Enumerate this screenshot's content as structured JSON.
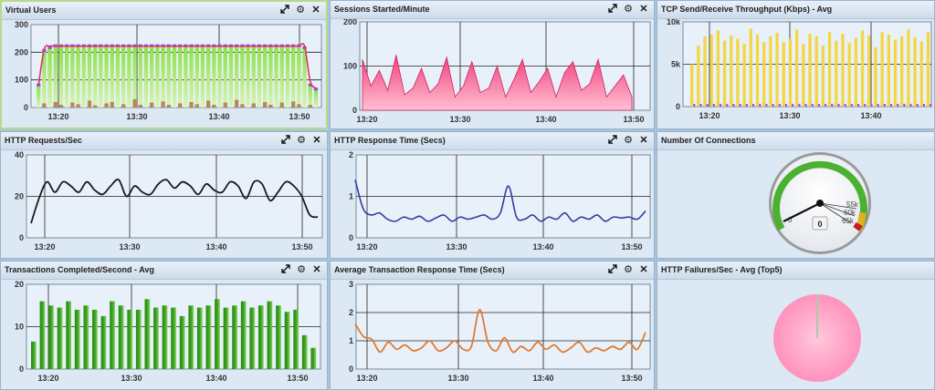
{
  "panels": {
    "virtual_users": {
      "title": "Virtual Users",
      "yticks": [
        "300",
        "200",
        "100",
        "0"
      ],
      "xticks": [
        "13:20",
        "13:30",
        "13:40",
        "13:50"
      ]
    },
    "sessions": {
      "title": "Sessions Started/Minute",
      "yticks": [
        "200",
        "100",
        "0"
      ],
      "xticks": [
        "13:20",
        "13:30",
        "13:40",
        "13:50"
      ]
    },
    "tcp": {
      "title": "TCP Send/Receive Throughput (Kbps) - Avg",
      "yticks": [
        "10k",
        "5k",
        "0"
      ],
      "xticks": [
        "13:20",
        "13:30",
        "13:40"
      ]
    },
    "http_requests": {
      "title": "HTTP Requests/Sec",
      "yticks": [
        "40",
        "20",
        "0"
      ],
      "xticks": [
        "13:20",
        "13:30",
        "13:40",
        "13:50"
      ]
    },
    "http_response": {
      "title": "HTTP Response Time (Secs)",
      "yticks": [
        "2",
        "1",
        "0"
      ],
      "xticks": [
        "13:20",
        "13:30",
        "13:40",
        "13:50"
      ]
    },
    "connections": {
      "title": "Number Of Connections",
      "gauge_labels": [
        "55k",
        "60k",
        "65k"
      ],
      "gauge_zero": "0",
      "gauge_value": "0"
    },
    "transactions": {
      "title": "Transactions Completed/Second - Avg",
      "yticks": [
        "20",
        "10",
        "0"
      ],
      "xticks": [
        "13:20",
        "13:30",
        "13:40",
        "13:50"
      ]
    },
    "avg_trans": {
      "title": "Average Transaction Response Time (Secs)",
      "yticks": [
        "3",
        "2",
        "1",
        "0"
      ],
      "xticks": [
        "13:20",
        "13:30",
        "13:40",
        "13:50"
      ]
    },
    "http_failures": {
      "title": "HTTP Failures/Sec - Avg (Top5)"
    }
  },
  "chart_data": [
    {
      "id": "virtual_users",
      "type": "bar",
      "ylim": [
        0,
        300
      ],
      "values": [
        80,
        205,
        215,
        222,
        222,
        222,
        222,
        222,
        222,
        222,
        222,
        222,
        222,
        222,
        222,
        222,
        222,
        222,
        222,
        222,
        222,
        222,
        222,
        222,
        222,
        222,
        222,
        222,
        222,
        222,
        222,
        222,
        222,
        222,
        222,
        222,
        222,
        222,
        222,
        222,
        222,
        222,
        222,
        222,
        222,
        222,
        222,
        215,
        80,
        65
      ],
      "ramp_line": [
        80,
        210,
        222,
        222,
        222,
        222,
        222,
        222,
        222,
        222,
        222,
        222,
        222,
        222,
        222,
        222,
        222,
        222,
        222,
        222,
        222,
        222,
        222,
        222,
        222,
        222,
        222,
        222,
        222,
        222,
        222,
        222,
        222,
        222,
        222,
        222,
        222,
        222,
        222,
        222,
        222,
        222,
        222,
        222,
        222,
        222,
        222,
        222,
        95,
        70
      ],
      "brown": [
        0,
        15,
        0,
        20,
        10,
        0,
        18,
        12,
        0,
        25,
        8,
        0,
        15,
        20,
        0,
        12,
        0,
        30,
        10,
        0,
        18,
        0,
        22,
        10,
        0,
        15,
        0,
        20,
        12,
        0,
        25,
        10,
        0,
        18,
        0,
        28,
        12,
        0,
        15,
        0,
        20,
        10,
        0,
        18,
        0,
        22,
        12,
        0,
        10,
        0
      ]
    },
    {
      "id": "sessions",
      "type": "area",
      "ylim": [
        0,
        200
      ],
      "values": [
        115,
        55,
        90,
        45,
        125,
        35,
        50,
        95,
        40,
        60,
        120,
        30,
        55,
        110,
        40,
        50,
        100,
        30,
        70,
        115,
        40,
        65,
        95,
        30,
        85,
        110,
        45,
        60,
        115,
        30,
        55,
        80,
        30
      ]
    },
    {
      "id": "tcp",
      "type": "bar",
      "ylim": [
        0,
        10000
      ],
      "values": [
        5000,
        7200,
        8300,
        8500,
        9000,
        7800,
        8400,
        8000,
        7400,
        9200,
        8500,
        7600,
        8300,
        8700,
        7600,
        8000,
        9100,
        7400,
        8600,
        8300,
        7200,
        8800,
        7800,
        8600,
        7500,
        8100,
        9000,
        8400,
        7000,
        8800,
        8500,
        7900,
        8300,
        9100,
        8200,
        7700,
        8800
      ]
    },
    {
      "id": "http_requests",
      "type": "line",
      "ylim": [
        0,
        40
      ],
      "values": [
        7,
        19,
        27,
        22,
        27,
        25,
        22,
        27,
        23,
        21,
        25,
        28,
        20,
        25,
        22,
        21,
        26,
        28,
        24,
        27,
        25,
        21,
        26,
        23,
        22,
        27,
        25,
        19,
        27,
        26,
        18,
        22,
        27,
        25,
        20,
        11,
        10
      ]
    },
    {
      "id": "http_response",
      "type": "line",
      "ylim": [
        0,
        2
      ],
      "values": [
        1.4,
        0.7,
        0.55,
        0.6,
        0.45,
        0.4,
        0.5,
        0.45,
        0.52,
        0.4,
        0.48,
        0.55,
        0.4,
        0.5,
        0.45,
        0.5,
        0.55,
        0.45,
        0.6,
        1.25,
        0.5,
        0.45,
        0.55,
        0.4,
        0.5,
        0.45,
        0.6,
        0.4,
        0.5,
        0.45,
        0.55,
        0.4,
        0.5,
        0.48,
        0.5,
        0.45,
        0.65
      ]
    },
    {
      "id": "connections",
      "type": "gauge",
      "value": 0,
      "ticks": [
        "55k",
        "60k",
        "65k"
      ]
    },
    {
      "id": "transactions",
      "type": "bar",
      "ylim": [
        0,
        20
      ],
      "values": [
        6.5,
        16,
        15,
        14.5,
        16,
        14,
        15,
        14,
        12.5,
        16,
        15,
        14,
        14,
        16.5,
        14.5,
        15,
        14.5,
        12.5,
        15,
        14.5,
        15,
        16.5,
        14.5,
        15,
        16,
        14.5,
        15,
        16,
        15,
        13.5,
        14,
        8,
        5
      ]
    },
    {
      "id": "avg_trans",
      "type": "line",
      "ylim": [
        0,
        3
      ],
      "values": [
        1.6,
        1.15,
        1.05,
        0.6,
        0.95,
        0.7,
        0.85,
        0.65,
        0.75,
        1.0,
        0.65,
        0.75,
        1.0,
        0.7,
        0.8,
        2.1,
        0.95,
        0.65,
        1.1,
        0.6,
        0.8,
        0.65,
        0.95,
        0.7,
        0.85,
        0.6,
        0.75,
        0.95,
        0.6,
        0.75,
        0.65,
        0.8,
        0.7,
        0.95,
        0.7,
        1.3
      ]
    },
    {
      "id": "http_failures",
      "type": "pie",
      "series": [
        {
          "values": [
            100
          ]
        }
      ]
    }
  ],
  "colors": {
    "vu_bar_top": "#8ce04a",
    "vu_bar_bottom": "#d8f4b8",
    "vu_cap": "#9a4af0",
    "vu_line": "#e0306a",
    "brown": "#b58a55",
    "sessions_area": "#f0407a",
    "tcp_bar": "#f4d640",
    "tcp_marker": "#a050f0",
    "requests_line": "#1a1a1a",
    "response_line": "#303ca0",
    "trans_bar": "#3aa020",
    "avg_line": "#e07a30",
    "pie": "#ff9ac2"
  },
  "icons": {
    "expand": "expand-icon",
    "settings": "gear-icon",
    "close": "close-icon"
  }
}
